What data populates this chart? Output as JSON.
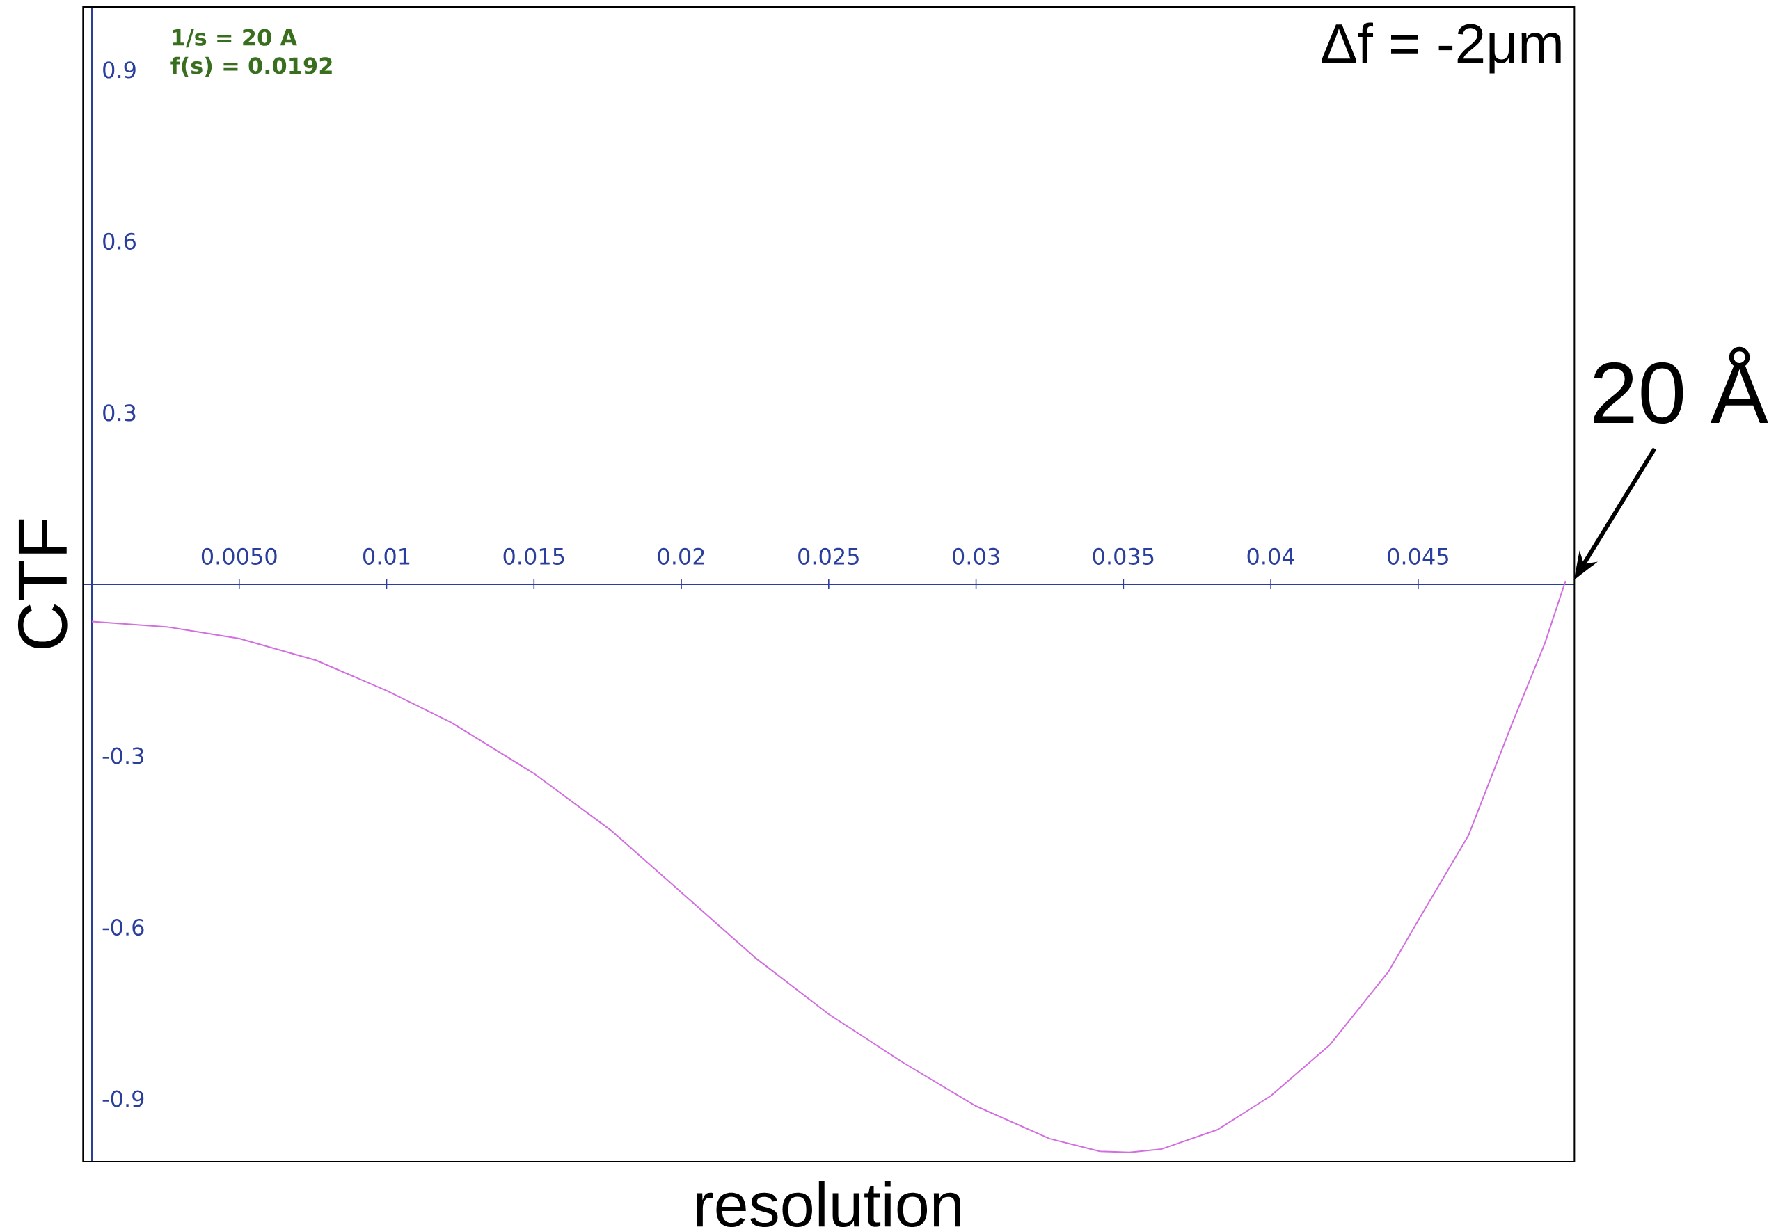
{
  "chart_data": {
    "type": "line",
    "xlabel": "resolution",
    "ylabel": "CTF",
    "xlim": [
      -0.0003,
      0.0503
    ],
    "ylim": [
      -1.01,
      1.01
    ],
    "xticks": [
      {
        "value": 0.005,
        "label": "0.0050"
      },
      0.01,
      0.015,
      0.02,
      0.025,
      0.03,
      0.035,
      0.04,
      0.045
    ],
    "yticks": [
      -0.9,
      -0.6,
      -0.3,
      0.3,
      0.6,
      0.9
    ],
    "series": [
      {
        "color": "#d36ee0",
        "marker": "none",
        "line_style": "solid",
        "x": [
          0,
          0.0026,
          0.005,
          0.0076,
          0.01,
          0.0122,
          0.015,
          0.0176,
          0.02,
          0.0225,
          0.025,
          0.0275,
          0.03,
          0.0325,
          0.0342,
          0.0352,
          0.0363,
          0.0382,
          0.04,
          0.042,
          0.044,
          0.045,
          0.0467,
          0.0482,
          0.0493,
          0.05
        ],
        "values": [
          -0.065,
          -0.075,
          -0.095,
          -0.133,
          -0.186,
          -0.242,
          -0.331,
          -0.43,
          -0.539,
          -0.653,
          -0.752,
          -0.836,
          -0.913,
          -0.97,
          -0.992,
          -0.994,
          -0.988,
          -0.954,
          -0.895,
          -0.806,
          -0.677,
          -0.588,
          -0.44,
          -0.242,
          -0.103,
          0.006
        ]
      }
    ],
    "annotations": [
      "1/s = 20 A",
      "f(s) = 0.0192",
      "Δf = -2μm",
      {
        "text": "20 Å",
        "x": 0.05,
        "y": 0
      }
    ]
  }
}
